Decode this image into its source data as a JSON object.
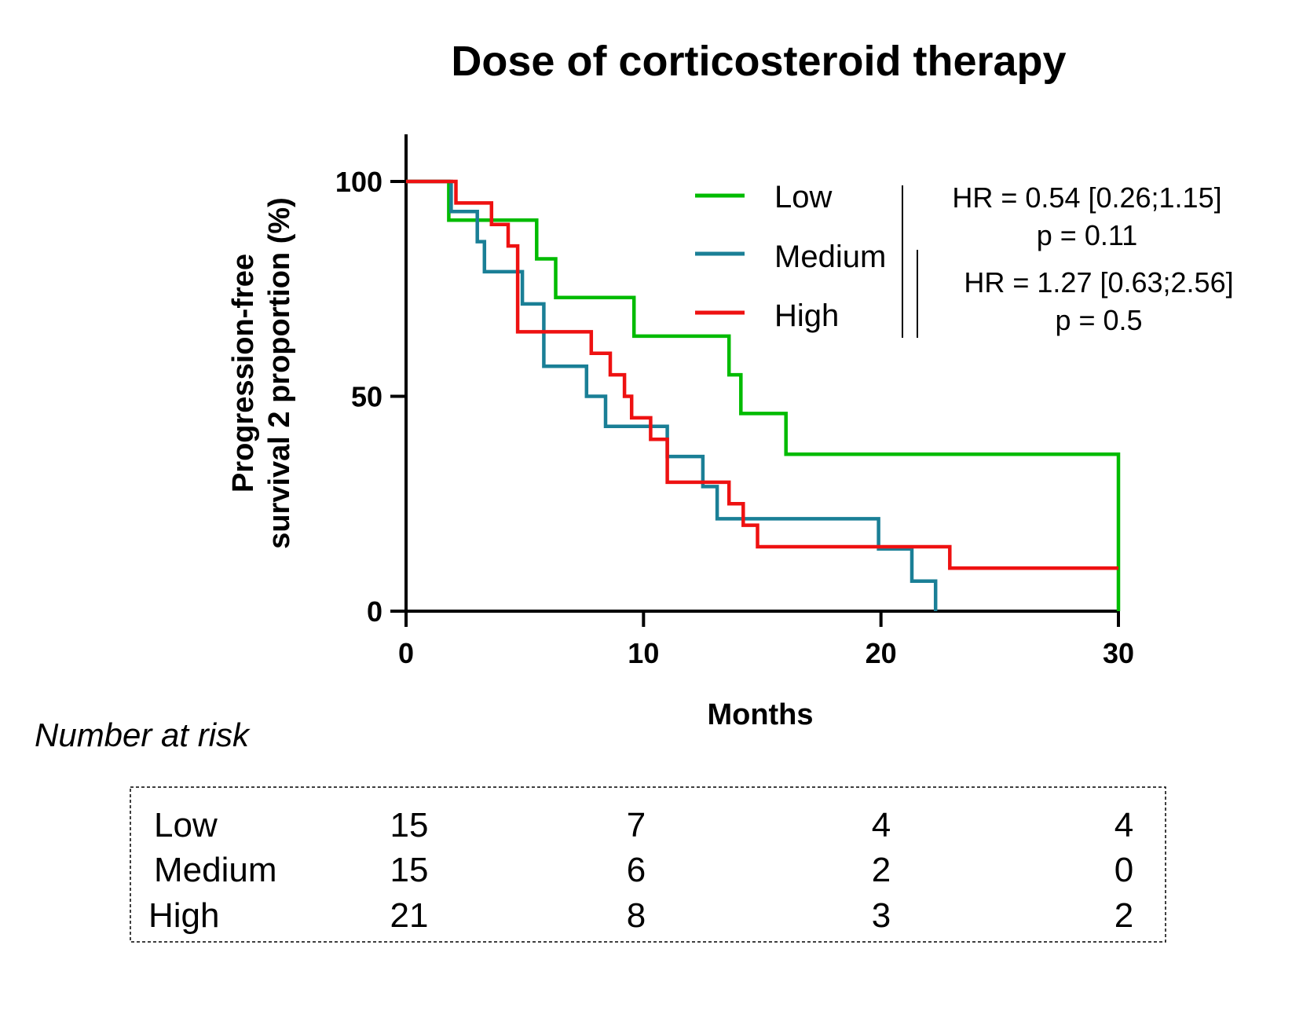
{
  "chart_data": {
    "type": "line",
    "title": "Dose of corticosteroid therapy",
    "xlabel": "Months",
    "ylabel_line1": "Progression-free",
    "ylabel_line2": "survival 2 proportion (%)",
    "xlim": [
      0,
      30
    ],
    "ylim": [
      0,
      100
    ],
    "x_ticks": [
      0,
      10,
      20,
      30
    ],
    "y_ticks": [
      0,
      50,
      100
    ],
    "x_tick_labels": [
      "0",
      "10",
      "20",
      "30"
    ],
    "y_tick_labels": [
      "0",
      "50",
      "100"
    ],
    "grid": false,
    "legend_position": "top-right",
    "series": [
      {
        "name": "Low",
        "color": "#00bb00",
        "x": [
          0,
          1.8,
          1.8,
          5.5,
          5.5,
          6.3,
          6.3,
          9.6,
          9.6,
          13.6,
          13.6,
          14.1,
          14.1,
          16.0,
          16.0,
          30.0,
          30.0
        ],
        "y": [
          100,
          100,
          91,
          91,
          82,
          82,
          73,
          73,
          64,
          64,
          55,
          55,
          46,
          46,
          36.5,
          36.5,
          0
        ]
      },
      {
        "name": "Medium",
        "color": "#1a7f96",
        "x": [
          0,
          1.9,
          1.9,
          3.0,
          3.0,
          3.3,
          3.3,
          4.9,
          4.9,
          5.8,
          5.8,
          7.6,
          7.6,
          8.4,
          8.4,
          11.0,
          11.0,
          12.5,
          12.5,
          13.1,
          13.1,
          19.9,
          19.9,
          21.3,
          21.3,
          22.3,
          22.3
        ],
        "y": [
          100,
          100,
          93,
          93,
          86,
          86,
          79,
          79,
          71.5,
          71.5,
          57,
          57,
          50,
          50,
          43,
          43,
          36,
          36,
          29,
          29,
          21.5,
          21.5,
          14.5,
          14.5,
          7,
          7,
          0
        ]
      },
      {
        "name": "High",
        "color": "#ee1111",
        "x": [
          0,
          2.1,
          2.1,
          3.6,
          3.6,
          4.3,
          4.3,
          4.7,
          4.7,
          7.8,
          7.8,
          8.6,
          8.6,
          9.2,
          9.2,
          9.5,
          9.5,
          10.3,
          10.3,
          11.0,
          11.0,
          13.6,
          13.6,
          14.2,
          14.2,
          14.8,
          14.8,
          22.9,
          22.9,
          30.0
        ],
        "y": [
          100,
          100,
          95,
          95,
          90,
          90,
          85,
          85,
          65,
          65,
          60,
          60,
          55,
          55,
          50,
          50,
          45,
          45,
          40,
          40,
          30,
          30,
          25,
          25,
          20,
          20,
          15,
          15,
          10,
          10
        ]
      }
    ],
    "annotations": [
      {
        "line1": "HR = 0.54 [0.26;1.15]",
        "line2": "p = 0.11"
      },
      {
        "line1": "HR = 1.27 [0.63;2.56]",
        "line2": "p = 0.5"
      }
    ]
  },
  "risk_table": {
    "title": "Number at risk",
    "rows": [
      {
        "label": "Low",
        "values": [
          "15",
          "7",
          "4",
          "4"
        ]
      },
      {
        "label": "Medium",
        "values": [
          "15",
          "6",
          "2",
          "0"
        ]
      },
      {
        "label": "High",
        "values": [
          "21",
          "8",
          "3",
          "2"
        ]
      }
    ]
  }
}
